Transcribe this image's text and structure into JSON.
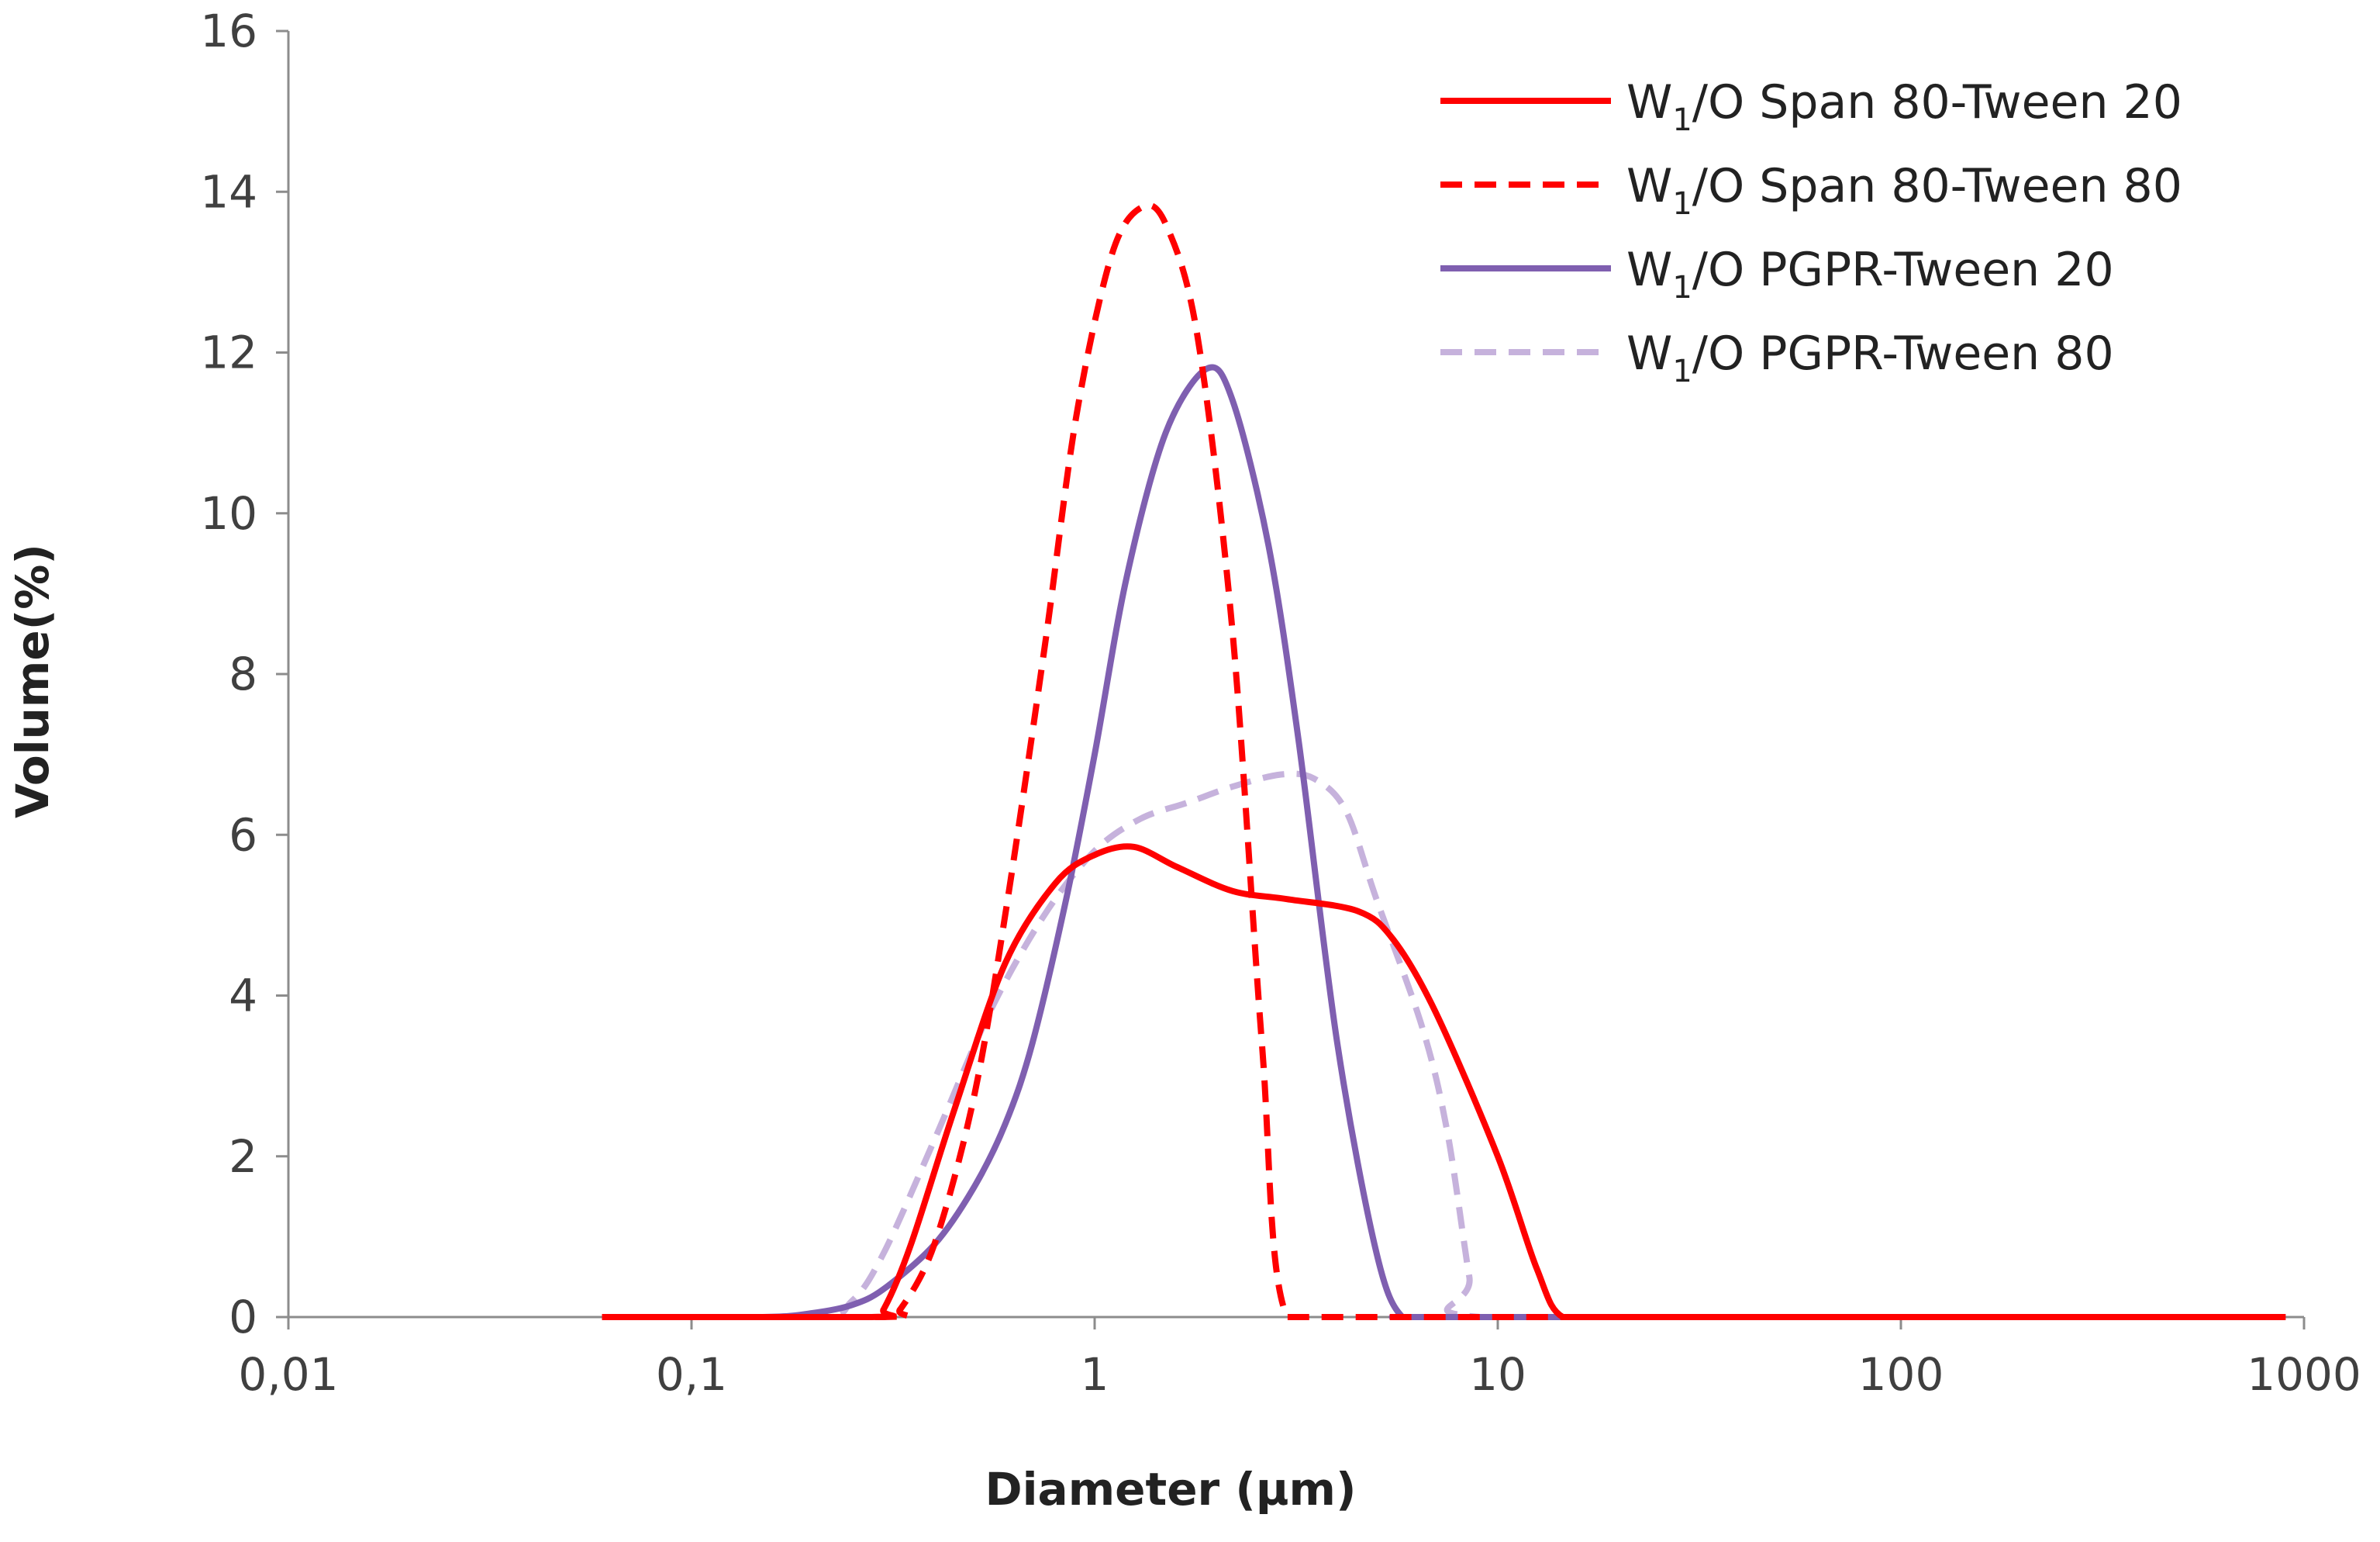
{
  "chart_data": {
    "type": "line",
    "title": "",
    "xlabel": "Diameter (µm)",
    "ylabel": "Volume(%)",
    "xscale": "log",
    "xlim": [
      0.01,
      1000
    ],
    "ylim": [
      0,
      16
    ],
    "x_tick_values": [
      0.01,
      0.1,
      1,
      10,
      100,
      1000
    ],
    "x_tick_labels": [
      "0,01",
      "0,1",
      "1",
      "10",
      "100",
      "1000"
    ],
    "y_tick_values": [
      0,
      2,
      4,
      6,
      8,
      10,
      12,
      14,
      16
    ],
    "y_tick_labels": [
      "0",
      "2",
      "4",
      "6",
      "8",
      "10",
      "12",
      "14",
      "16"
    ],
    "grid": false,
    "legend_position": "top-right",
    "series": [
      {
        "name": "W1/O Span 80-Tween 20",
        "label_main": "W",
        "label_sub": "1",
        "label_rest": "/O Span 80-Tween 20",
        "color": "#ff0000",
        "dash": "solid",
        "x": [
          0.06,
          0.28,
          0.3,
          0.35,
          0.45,
          0.6,
          0.8,
          1.0,
          1.25,
          1.6,
          2.2,
          3.0,
          4.5,
          5.5,
          7.0,
          10.0,
          12.5,
          14.5,
          20.0,
          100.0,
          900.0
        ],
        "y": [
          0,
          0,
          0.1,
          0.9,
          2.6,
          4.4,
          5.4,
          5.75,
          5.85,
          5.6,
          5.3,
          5.2,
          5.05,
          4.7,
          3.8,
          2.0,
          0.6,
          0,
          0,
          0,
          0
        ]
      },
      {
        "name": "W1/O Span 80-Tween 80",
        "label_main": "W",
        "label_sub": "1",
        "label_rest": "/O Span 80-Tween 80",
        "color": "#ff0000",
        "dash": "dashed",
        "x": [
          0.06,
          0.3,
          0.33,
          0.4,
          0.5,
          0.6,
          0.75,
          0.9,
          1.1,
          1.3,
          1.5,
          1.8,
          2.2,
          2.6,
          3.0,
          5.0,
          100.0,
          900.0
        ],
        "y": [
          0,
          0,
          0.1,
          0.9,
          2.7,
          5.0,
          8.3,
          11.2,
          13.2,
          13.8,
          13.6,
          12.2,
          8.5,
          3.4,
          0,
          0,
          0,
          0
        ]
      },
      {
        "name": "W1/O PGPR-Tween 20",
        "label_main": "W",
        "label_sub": "1",
        "label_rest": "/O PGPR-Tween 20",
        "color": "#7f5fb0",
        "dash": "solid",
        "x": [
          0.06,
          0.15,
          0.2,
          0.25,
          0.3,
          0.4,
          0.5,
          0.6,
          0.7,
          0.85,
          1.0,
          1.2,
          1.5,
          1.9,
          2.2,
          2.7,
          3.2,
          4.0,
          5.0,
          5.8,
          7.0,
          100.0,
          900.0
        ],
        "y": [
          0,
          0,
          0.05,
          0.15,
          0.35,
          0.9,
          1.6,
          2.4,
          3.4,
          5.2,
          7.0,
          9.2,
          11.0,
          11.8,
          11.4,
          9.6,
          7.2,
          3.4,
          0.8,
          0,
          0,
          0,
          0
        ]
      },
      {
        "name": "W1/O PGPR-Tween 80",
        "label_main": "W",
        "label_sub": "1",
        "label_rest": "/O PGPR-Tween 80",
        "color": "#c6b2dc",
        "dash": "dashed",
        "x": [
          0.06,
          0.2,
          0.25,
          0.3,
          0.4,
          0.55,
          0.75,
          1.0,
          1.3,
          1.7,
          2.2,
          2.9,
          3.5,
          4.2,
          5.0,
          6.5,
          7.5,
          8.5,
          9.0,
          100.0,
          900.0
        ],
        "y": [
          0,
          0,
          0.2,
          0.8,
          2.2,
          3.8,
          5.0,
          5.8,
          6.2,
          6.4,
          6.6,
          6.75,
          6.7,
          6.3,
          5.2,
          3.6,
          2.3,
          0.5,
          0,
          0,
          0
        ]
      }
    ]
  }
}
